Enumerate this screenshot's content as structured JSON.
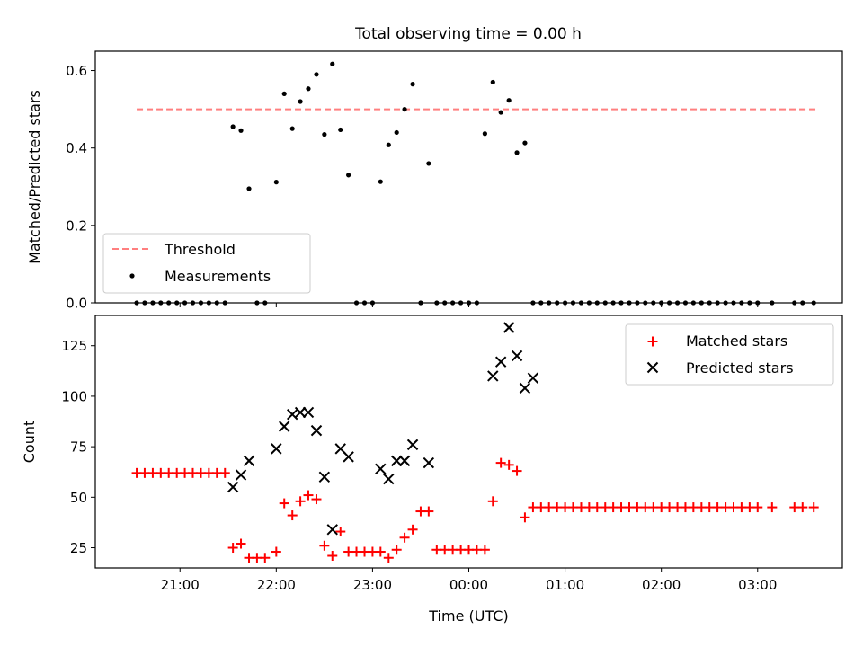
{
  "title": "Total observing time = 0.00 h",
  "chart_data": [
    {
      "type": "scatter",
      "ylabel": "Matched/Predicted stars",
      "ylim": [
        0,
        0.65
      ],
      "yticks": [
        0.0,
        0.2,
        0.4,
        0.6
      ],
      "ytick_labels": [
        "0.0",
        "0.2",
        "0.4",
        "0.6"
      ],
      "legend": {
        "position": "lower-left",
        "entries": [
          "Threshold",
          "Measurements"
        ]
      },
      "threshold": {
        "name": "Threshold",
        "value": 0.5,
        "x_range": [
          20.55,
          27.6
        ],
        "color": "#ff7f7f"
      },
      "series": [
        {
          "name": "Measurements",
          "color": "#000000",
          "x": [
            20.55,
            20.633,
            20.717,
            20.8,
            20.883,
            20.967,
            21.05,
            21.133,
            21.217,
            21.3,
            21.383,
            21.467,
            21.55,
            21.633,
            21.717,
            21.8,
            21.883,
            22.0,
            22.083,
            22.167,
            22.25,
            22.333,
            22.417,
            22.5,
            22.583,
            22.667,
            22.75,
            22.833,
            22.917,
            23.0,
            23.083,
            23.167,
            23.25,
            23.333,
            23.417,
            23.5,
            23.583,
            23.667,
            23.75,
            23.833,
            23.917,
            24.0,
            24.083,
            24.167,
            24.25,
            24.333,
            24.417,
            24.5,
            24.583,
            24.667,
            24.75,
            24.833,
            24.917,
            25.0,
            25.083,
            25.167,
            25.25,
            25.333,
            25.417,
            25.5,
            25.583,
            25.667,
            25.75,
            25.833,
            25.917,
            26.0,
            26.083,
            26.167,
            26.25,
            26.333,
            26.417,
            26.5,
            26.583,
            26.667,
            26.75,
            26.833,
            26.917,
            27.0,
            27.15,
            27.383,
            27.467,
            27.583
          ],
          "y": [
            0,
            0,
            0,
            0,
            0,
            0,
            0,
            0,
            0,
            0,
            0,
            0,
            0.455,
            0.445,
            0.295,
            0,
            0,
            0.312,
            0.54,
            0.45,
            0.52,
            0.553,
            0.59,
            0.435,
            0.617,
            0.447,
            0.33,
            0,
            0,
            0,
            0.313,
            0.408,
            0.44,
            0.5,
            0.565,
            0,
            0.36,
            0,
            0,
            0,
            0,
            0,
            0,
            0.437,
            0.57,
            0.492,
            0.523,
            0.388,
            0.413,
            0,
            0,
            0,
            0,
            0,
            0,
            0,
            0,
            0,
            0,
            0,
            0,
            0,
            0,
            0,
            0,
            0,
            0,
            0,
            0,
            0,
            0,
            0,
            0,
            0,
            0,
            0,
            0,
            0,
            0,
            0,
            0,
            0
          ]
        }
      ]
    },
    {
      "type": "scatter",
      "xlabel": "Time (UTC)",
      "ylabel": "Count",
      "ylim": [
        15,
        140
      ],
      "yticks": [
        25,
        50,
        75,
        100,
        125
      ],
      "ytick_labels": [
        "25",
        "50",
        "75",
        "100",
        "125"
      ],
      "xticks": [
        21,
        22,
        23,
        24,
        25,
        26,
        27
      ],
      "xtick_labels": [
        "21:00",
        "22:00",
        "23:00",
        "00:00",
        "01:00",
        "02:00",
        "03:00"
      ],
      "xlim": [
        20.12,
        27.88
      ],
      "legend": {
        "position": "top-right",
        "entries": [
          "Matched stars",
          "Predicted stars"
        ]
      },
      "series": [
        {
          "name": "Matched stars",
          "color": "#ff0000",
          "x": [
            20.55,
            20.633,
            20.717,
            20.8,
            20.883,
            20.967,
            21.05,
            21.133,
            21.217,
            21.3,
            21.383,
            21.467,
            21.55,
            21.633,
            21.717,
            21.8,
            21.883,
            22.0,
            22.083,
            22.167,
            22.25,
            22.333,
            22.417,
            22.5,
            22.583,
            22.667,
            22.75,
            22.833,
            22.917,
            23.0,
            23.083,
            23.167,
            23.25,
            23.333,
            23.417,
            23.5,
            23.583,
            23.667,
            23.75,
            23.833,
            23.917,
            24.0,
            24.083,
            24.167,
            24.25,
            24.333,
            24.417,
            24.5,
            24.583,
            24.667,
            24.75,
            24.833,
            24.917,
            25.0,
            25.083,
            25.167,
            25.25,
            25.333,
            25.417,
            25.5,
            25.583,
            25.667,
            25.75,
            25.833,
            25.917,
            26.0,
            26.083,
            26.167,
            26.25,
            26.333,
            26.417,
            26.5,
            26.583,
            26.667,
            26.75,
            26.833,
            26.917,
            27.0,
            27.15,
            27.383,
            27.467,
            27.583
          ],
          "y": [
            62,
            62,
            62,
            62,
            62,
            62,
            62,
            62,
            62,
            62,
            62,
            62,
            25,
            27,
            20,
            20,
            20,
            23,
            47,
            41,
            48,
            51,
            49,
            26,
            21,
            33,
            23,
            23,
            23,
            23,
            23,
            20,
            24,
            30,
            34,
            43,
            43,
            24,
            24,
            24,
            24,
            24,
            24,
            24,
            48,
            67,
            66,
            63,
            40,
            45,
            45,
            45,
            45,
            45,
            45,
            45,
            45,
            45,
            45,
            45,
            45,
            45,
            45,
            45,
            45,
            45,
            45,
            45,
            45,
            45,
            45,
            45,
            45,
            45,
            45,
            45,
            45,
            45,
            45,
            45,
            45,
            45
          ]
        },
        {
          "name": "Predicted stars",
          "color": "#000000",
          "x": [
            21.55,
            21.633,
            21.717,
            22.0,
            22.083,
            22.167,
            22.25,
            22.333,
            22.417,
            22.5,
            22.583,
            22.667,
            22.75,
            23.083,
            23.167,
            23.25,
            23.333,
            23.417,
            23.583,
            24.25,
            24.333,
            24.417,
            24.5,
            24.583,
            24.667
          ],
          "y": [
            55,
            61,
            68,
            74,
            85,
            91,
            92,
            92,
            83,
            60,
            34,
            74,
            70,
            64,
            59,
            68,
            68,
            76,
            67,
            110,
            117,
            134,
            120,
            104,
            109
          ]
        }
      ]
    }
  ]
}
